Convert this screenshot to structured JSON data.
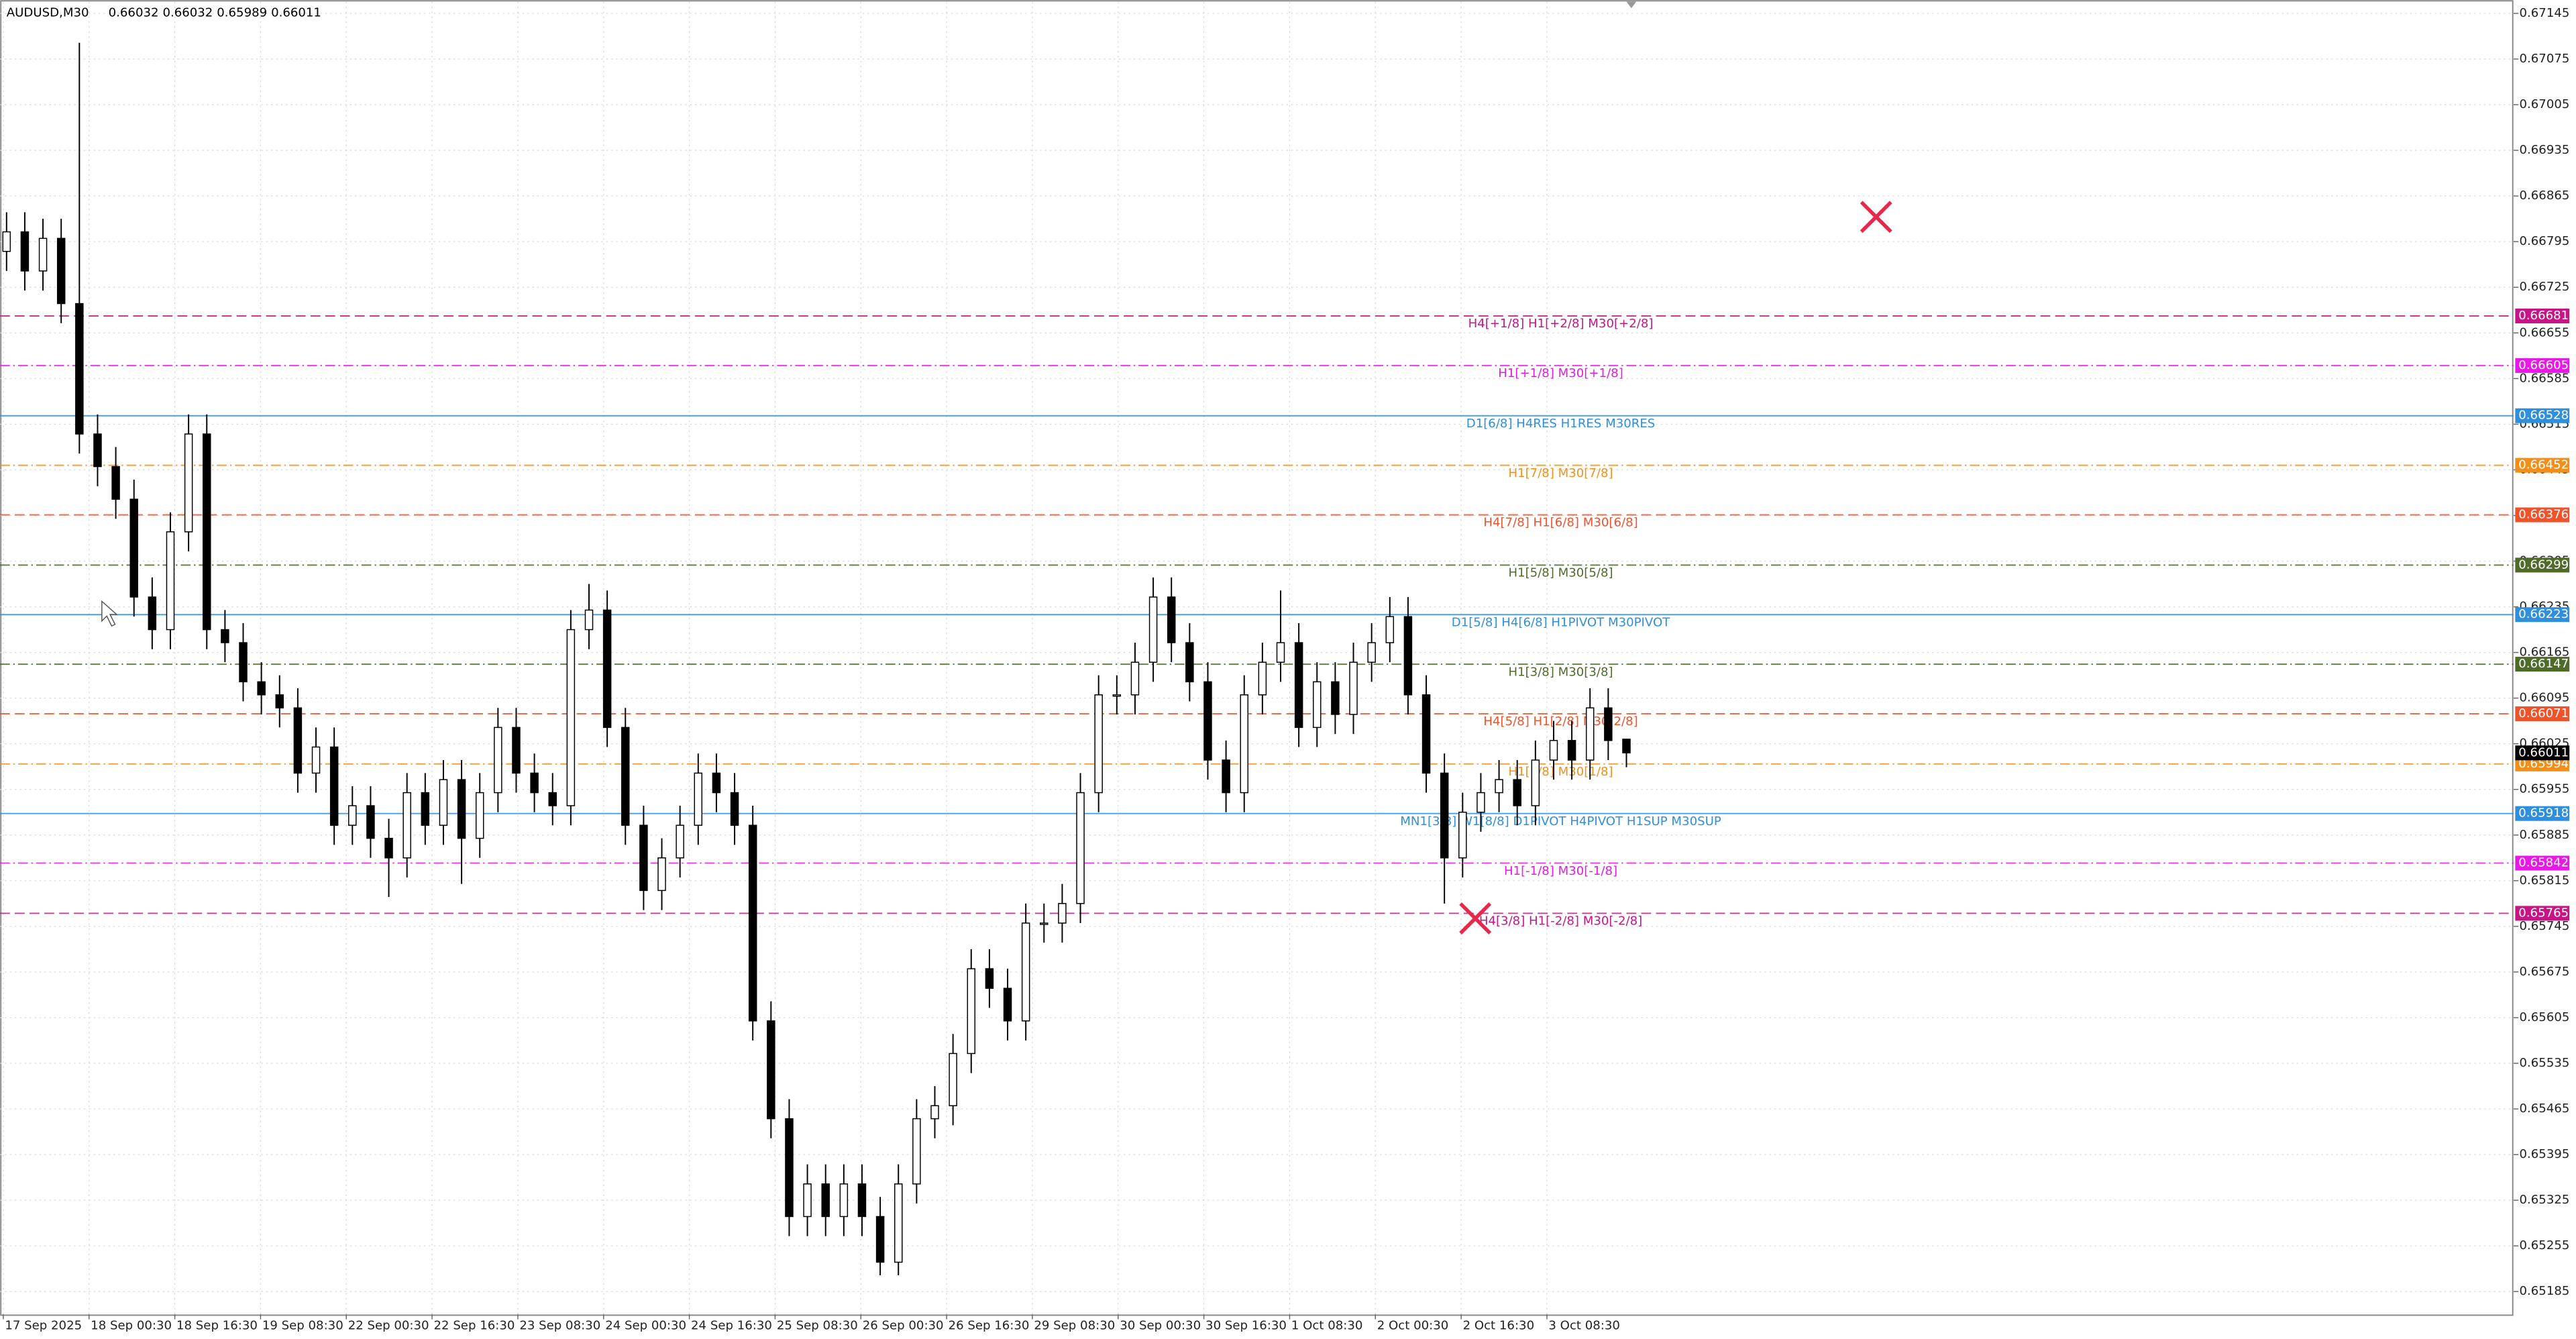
{
  "chart_data": {
    "type": "candlestick",
    "symbol": "AUDUSD,M30",
    "ylim": [
      0.6515,
      0.67163
    ],
    "yticks": [
      0.67145,
      0.67075,
      0.67005,
      0.66935,
      0.66865,
      0.66795,
      0.66725,
      0.66655,
      0.66585,
      0.66515,
      0.66445,
      0.66375,
      0.66305,
      0.66235,
      0.66165,
      0.66095,
      0.66025,
      0.65955,
      0.65885,
      0.65815,
      0.65745,
      0.65675,
      0.65605,
      0.65535,
      0.65465,
      0.65395,
      0.65325,
      0.65255,
      0.65185
    ],
    "grid": true,
    "x_labels": [
      "17 Sep 2025",
      "18 Sep 00:30",
      "18 Sep 16:30",
      "19 Sep 08:30",
      "22 Sep 00:30",
      "22 Sep 16:30",
      "23 Sep 08:30",
      "24 Sep 00:30",
      "24 Sep 16:30",
      "25 Sep 08:30",
      "26 Sep 00:30",
      "26 Sep 16:30",
      "29 Sep 08:30",
      "30 Sep 00:30",
      "30 Sep 16:30",
      "1 Oct 08:30",
      "2 Oct 00:30",
      "2 Oct 16:30",
      "3 Oct 08:30"
    ],
    "open": [
      0.6678,
      0.6681,
      0.6675,
      0.668,
      0.667,
      0.665,
      0.6645,
      0.664,
      0.6625,
      0.662,
      0.6635,
      0.665,
      0.662,
      0.6618,
      0.6612,
      0.661,
      0.6608,
      0.6598,
      0.6602,
      0.659,
      0.6593,
      0.6588,
      0.6585,
      0.6595,
      0.659,
      0.6597,
      0.6588,
      0.6595,
      0.6605,
      0.6598,
      0.6595,
      0.6593,
      0.662,
      0.6623,
      0.6605,
      0.659,
      0.658,
      0.6585,
      0.659,
      0.6598,
      0.6595,
      0.659,
      0.656,
      0.6545,
      0.653,
      0.6535,
      0.653,
      0.6535,
      0.653,
      0.6523,
      0.6535,
      0.6545,
      0.6547,
      0.6555,
      0.6568,
      0.6565,
      0.656,
      0.6575,
      0.6575,
      0.6578,
      0.6595,
      0.661,
      0.661,
      0.6615,
      0.6625,
      0.6618,
      0.6612,
      0.66,
      0.6595,
      0.661,
      0.6615,
      0.6618,
      0.6605,
      0.6612,
      0.6607,
      0.6615,
      0.6618,
      0.6622,
      0.661,
      0.6598,
      0.6585,
      0.6592,
      0.6595,
      0.6597,
      0.6593,
      0.66,
      0.6603,
      0.66,
      0.6608,
      0.66032
    ],
    "high": [
      0.6684,
      0.6684,
      0.6683,
      0.6683,
      0.671,
      0.6653,
      0.6648,
      0.6643,
      0.6628,
      0.6638,
      0.6653,
      0.6653,
      0.6623,
      0.6621,
      0.6615,
      0.6613,
      0.6611,
      0.6605,
      0.6605,
      0.6596,
      0.6596,
      0.6591,
      0.6598,
      0.6598,
      0.66,
      0.66,
      0.6598,
      0.6608,
      0.6608,
      0.6601,
      0.6598,
      0.6623,
      0.6627,
      0.6626,
      0.6608,
      0.6593,
      0.6588,
      0.6593,
      0.6601,
      0.6601,
      0.6598,
      0.6593,
      0.6563,
      0.6548,
      0.6538,
      0.6538,
      0.6538,
      0.6538,
      0.6533,
      0.6538,
      0.6548,
      0.655,
      0.6558,
      0.6571,
      0.6571,
      0.6568,
      0.6578,
      0.6578,
      0.6581,
      0.6598,
      0.6613,
      0.6613,
      0.6618,
      0.6628,
      0.6628,
      0.6621,
      0.6615,
      0.6603,
      0.6613,
      0.6618,
      0.6626,
      0.6621,
      0.6615,
      0.6615,
      0.6618,
      0.6621,
      0.6625,
      0.6625,
      0.6613,
      0.6601,
      0.6595,
      0.6598,
      0.66,
      0.66,
      0.6603,
      0.6606,
      0.6606,
      0.6611,
      0.6611,
      0.66032
    ],
    "low": [
      0.6675,
      0.6672,
      0.6672,
      0.6667,
      0.6647,
      0.6642,
      0.6637,
      0.6622,
      0.6617,
      0.6617,
      0.6632,
      0.6617,
      0.6615,
      0.6609,
      0.6607,
      0.6605,
      0.6595,
      0.6595,
      0.6587,
      0.6587,
      0.6585,
      0.6579,
      0.6582,
      0.6587,
      0.6587,
      0.6581,
      0.6585,
      0.6592,
      0.6595,
      0.6592,
      0.659,
      0.659,
      0.6617,
      0.6602,
      0.6587,
      0.6577,
      0.6577,
      0.6582,
      0.6587,
      0.6592,
      0.6587,
      0.6557,
      0.6542,
      0.6527,
      0.6527,
      0.6527,
      0.6527,
      0.6527,
      0.6521,
      0.6521,
      0.6532,
      0.6542,
      0.6544,
      0.6552,
      0.6562,
      0.6557,
      0.6557,
      0.6572,
      0.6572,
      0.6575,
      0.6592,
      0.6607,
      0.6607,
      0.6612,
      0.6615,
      0.6609,
      0.6597,
      0.6592,
      0.6592,
      0.6607,
      0.6612,
      0.6602,
      0.6602,
      0.6604,
      0.6604,
      0.6612,
      0.6615,
      0.6607,
      0.6595,
      0.6578,
      0.6582,
      0.6589,
      0.6592,
      0.659,
      0.659,
      0.6597,
      0.6597,
      0.6597,
      0.66,
      0.65989
    ],
    "close": [
      0.6681,
      0.6675,
      0.668,
      0.667,
      0.665,
      0.6645,
      0.664,
      0.6625,
      0.662,
      0.6635,
      0.665,
      0.662,
      0.6618,
      0.6612,
      0.661,
      0.6608,
      0.6598,
      0.6602,
      0.659,
      0.6593,
      0.6588,
      0.6585,
      0.6595,
      0.659,
      0.6597,
      0.6588,
      0.6595,
      0.6605,
      0.6598,
      0.6595,
      0.6593,
      0.662,
      0.6623,
      0.6605,
      0.659,
      0.658,
      0.6585,
      0.659,
      0.6598,
      0.6595,
      0.659,
      0.656,
      0.6545,
      0.653,
      0.6535,
      0.653,
      0.6535,
      0.653,
      0.6523,
      0.6535,
      0.6545,
      0.6547,
      0.6555,
      0.6568,
      0.6565,
      0.656,
      0.6575,
      0.6575,
      0.6578,
      0.6595,
      0.661,
      0.661,
      0.6615,
      0.6625,
      0.6618,
      0.6612,
      0.66,
      0.6595,
      0.661,
      0.6615,
      0.6618,
      0.6605,
      0.6612,
      0.6607,
      0.6615,
      0.6618,
      0.6622,
      0.661,
      0.6598,
      0.6585,
      0.6592,
      0.6595,
      0.6597,
      0.6593,
      0.66,
      0.6603,
      0.66,
      0.6608,
      0.6603,
      0.66011
    ],
    "levels": [
      {
        "value": 0.66681,
        "label": "H4[+1/8] H1[+2/8] M30[+2/8]",
        "color": "#c71585",
        "style": "dash"
      },
      {
        "value": 0.66605,
        "label": "H1[+1/8] M30[+1/8]",
        "color": "#e619e6",
        "style": "dashdot"
      },
      {
        "value": 0.66528,
        "label": "D1[6/8] H4RES H1RES M30RES",
        "color": "#2f8fdc",
        "style": "solid"
      },
      {
        "value": 0.66452,
        "label": "H1[7/8] M30[7/8]",
        "color": "#f0901a",
        "style": "dashdot"
      },
      {
        "value": 0.66376,
        "label": "H4[7/8] H1[6/8] M30[6/8]",
        "color": "#f0522a",
        "style": "dash"
      },
      {
        "value": 0.66299,
        "label": "H1[5/8] M30[5/8]",
        "color": "#4f6b2a",
        "style": "dashdot"
      },
      {
        "value": 0.66223,
        "label": "D1[5/8] H4[6/8] H1PIVOT M30PIVOT",
        "color": "#2f8fdc",
        "style": "solid"
      },
      {
        "value": 0.66147,
        "label": "H1[3/8] M30[3/8]",
        "color": "#4f6b2a",
        "style": "dashdot"
      },
      {
        "value": 0.66071,
        "label": "H4[5/8] H1[2/8] M30[2/8]",
        "color": "#f0522a",
        "style": "dash"
      },
      {
        "value": 0.65994,
        "label": "H1[1/8] M30[1/8]",
        "color": "#f0901a",
        "style": "dashdot"
      },
      {
        "value": 0.65918,
        "label": "MN1[3/8] W1[8/8] D1PIVOT H4PIVOT H1SUP M30SUP",
        "color": "#2f8fdc",
        "style": "solid"
      },
      {
        "value": 0.65842,
        "label": "H1[-1/8] M30[-1/8]",
        "color": "#e619e6",
        "style": "dashdot"
      },
      {
        "value": 0.65765,
        "label": "H4[3/8] H1[-2/8] M30[-2/8]",
        "color": "#c71585",
        "style": "dash"
      }
    ]
  }
}
